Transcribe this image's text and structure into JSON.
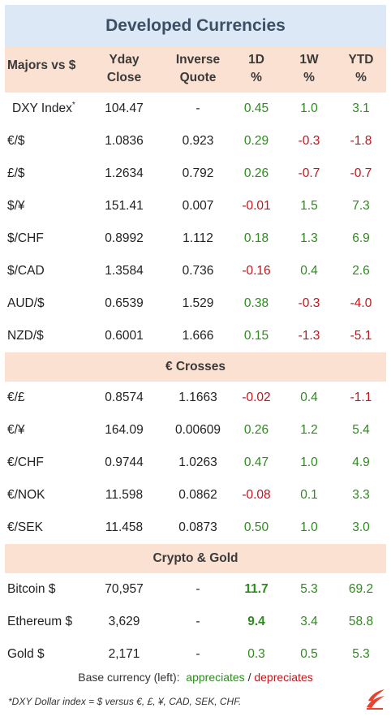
{
  "title": "Developed Currencies",
  "header": {
    "majors": "Majors vs $",
    "yday_line1": "Yday",
    "yday_line2": "Close",
    "inverse_line1": "Inverse",
    "inverse_line2": "Quote",
    "d1_line1": "1D",
    "d1_line2": "%",
    "w1_line1": "1W",
    "w1_line2": "%",
    "ytd_line1": "YTD",
    "ytd_line2": "%"
  },
  "majors": [
    {
      "name": "DXY Index",
      "sup": "*",
      "yday": "104.47",
      "inverse": "-",
      "d1": "0.45",
      "w1": "1.0",
      "ytd": "3.1"
    },
    {
      "name": "€/$",
      "yday": "1.0836",
      "inverse": "0.923",
      "d1": "0.29",
      "w1": "-0.3",
      "ytd": "-1.8"
    },
    {
      "name": "£/$",
      "yday": "1.2634",
      "inverse": "0.792",
      "d1": "0.26",
      "w1": "-0.7",
      "ytd": "-0.7"
    },
    {
      "name": "$/¥",
      "yday": "151.41",
      "inverse": "0.007",
      "d1": "-0.01",
      "w1": "1.5",
      "ytd": "7.3"
    },
    {
      "name": "$/CHF",
      "yday": "0.8992",
      "inverse": "1.112",
      "d1": "0.18",
      "w1": "1.3",
      "ytd": "6.9"
    },
    {
      "name": "$/CAD",
      "yday": "1.3584",
      "inverse": "0.736",
      "d1": "-0.16",
      "w1": "0.4",
      "ytd": "2.6"
    },
    {
      "name": "AUD/$",
      "yday": "0.6539",
      "inverse": "1.529",
      "d1": "0.38",
      "w1": "-0.3",
      "ytd": "-4.0"
    },
    {
      "name": "NZD/$",
      "yday": "0.6001",
      "inverse": "1.666",
      "d1": "0.15",
      "w1": "-1.3",
      "ytd": "-5.1"
    }
  ],
  "crosses_title": "€ Crosses",
  "crosses": [
    {
      "name": "€/£",
      "yday": "0.8574",
      "inverse": "1.1663",
      "d1": "-0.02",
      "w1": "0.4",
      "ytd": "-1.1"
    },
    {
      "name": "€/¥",
      "yday": "164.09",
      "inverse": "0.00609",
      "d1": "0.26",
      "w1": "1.2",
      "ytd": "5.4"
    },
    {
      "name": "€/CHF",
      "yday": "0.9744",
      "inverse": "1.0263",
      "d1": "0.47",
      "w1": "1.0",
      "ytd": "4.9"
    },
    {
      "name": "€/NOK",
      "yday": "11.598",
      "inverse": "0.0862",
      "d1": "-0.08",
      "w1": "0.1",
      "ytd": "3.3"
    },
    {
      "name": "€/SEK",
      "yday": "11.458",
      "inverse": "0.0873",
      "d1": "0.50",
      "w1": "1.0",
      "ytd": "3.0"
    }
  ],
  "crypto_title": "Crypto  &  Gold",
  "crypto": [
    {
      "name": "Bitcoin $",
      "yday": "70,957",
      "inverse": "-",
      "d1": "11.7",
      "w1": "5.3",
      "ytd": "69.2",
      "d1_bold": true
    },
    {
      "name": "Ethereum $",
      "yday": "3,629",
      "inverse": "-",
      "d1": "9.4",
      "w1": "3.4",
      "ytd": "58.8",
      "d1_bold": true
    },
    {
      "name": "Gold $",
      "yday": "2,171",
      "inverse": "-",
      "d1": "0.3",
      "w1": "0.5",
      "ytd": "5.3"
    }
  ],
  "legend": {
    "prefix": "Base currency (left):",
    "appreciates": "appreciates",
    "sep": "/",
    "depreciates": "depreciates"
  },
  "footnote": "*DXY Dollar index = $ versus €, £, ¥, CAD, SEK, CHF.",
  "colors": {
    "positive": "#2e8b1e",
    "negative": "#c0161b",
    "title_bg": "#dce8f5",
    "header_bg": "#fbe1d2",
    "logo": "#e8432e"
  },
  "logo_icon": "flame-logo-icon"
}
